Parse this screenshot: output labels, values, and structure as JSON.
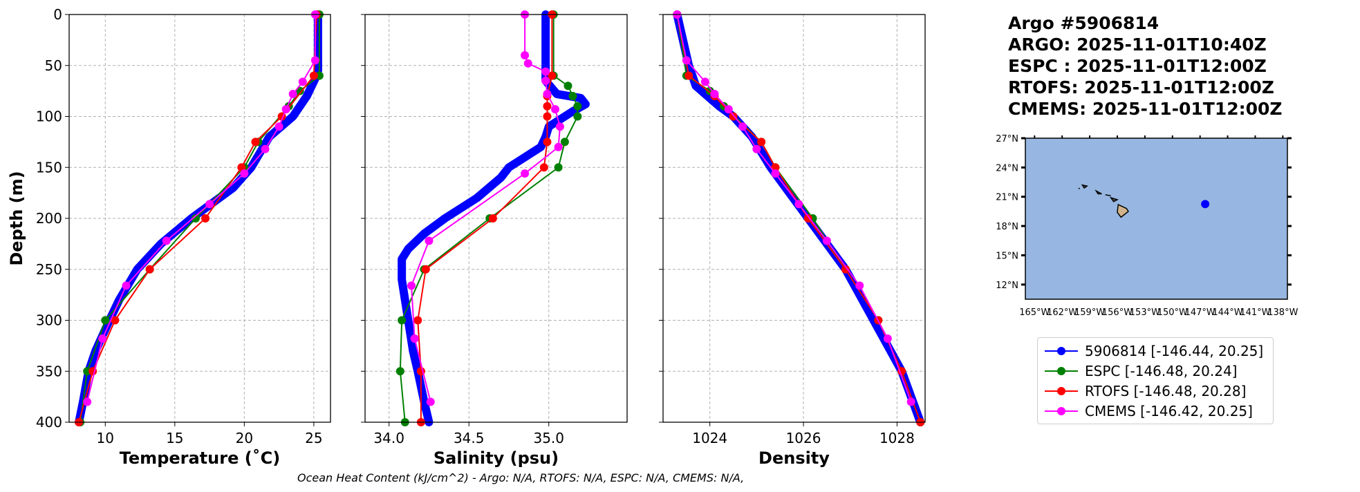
{
  "info": {
    "lines": [
      "Argo #5906814",
      "ARGO: 2025-11-01T10:40Z",
      "ESPC : 2025-11-01T12:00Z",
      "RTOFS: 2025-11-01T12:00Z",
      "CMEMS: 2025-11-01T12:00Z"
    ]
  },
  "footer": "Ocean Heat Content (kJ/cm^2) - Argo: N/A,  RTOFS: N/A,  ESPC: N/A,  CMEMS: N/A,",
  "legend": [
    {
      "label": "5906814 [-146.44, 20.25]",
      "color": "#0000ff"
    },
    {
      "label": "ESPC [-146.48, 20.24]",
      "color": "#008000"
    },
    {
      "label": "RTOFS [-146.48, 20.28]",
      "color": "#ff0000"
    },
    {
      "label": "CMEMS [-146.42, 20.25]",
      "color": "#ff00ff"
    }
  ],
  "chart_data": [
    {
      "type": "line",
      "xlabel": "Temperature (˚C)",
      "ylabel": "Depth (m)",
      "xlim": [
        7.4,
        26.2
      ],
      "ylim": [
        400,
        0
      ],
      "xticks": [
        10,
        15,
        20,
        25
      ],
      "yticks": [
        0,
        50,
        100,
        150,
        200,
        250,
        300,
        350,
        400
      ],
      "grid": true,
      "series": [
        {
          "name": "5906814",
          "depth": [
            0,
            55,
            60,
            80,
            100,
            120,
            150,
            170,
            200,
            225,
            250,
            280,
            300,
            330,
            350,
            380,
            400
          ],
          "values": [
            25.3,
            25.3,
            25.2,
            24.5,
            23.5,
            21.8,
            20.5,
            19.2,
            16.2,
            14.0,
            12.3,
            11.0,
            10.3,
            9.3,
            8.8,
            8.4,
            8.1
          ]
        },
        {
          "name": "ESPC",
          "depth": [
            0,
            60,
            75,
            90,
            125,
            150,
            200,
            250,
            300,
            350,
            400
          ],
          "values": [
            25.4,
            25.4,
            24.0,
            23.2,
            21.0,
            20.0,
            16.5,
            13.2,
            10.0,
            8.7,
            8.2
          ]
        },
        {
          "name": "RTOFS",
          "depth": [
            0,
            60,
            100,
            125,
            150,
            200,
            250,
            300,
            350,
            400
          ],
          "values": [
            25.2,
            25.0,
            22.7,
            20.8,
            19.8,
            17.2,
            13.2,
            10.7,
            9.1,
            8.1
          ]
        },
        {
          "name": "CMEMS",
          "depth": [
            0,
            45,
            66,
            78,
            93,
            110,
            132,
            156,
            186,
            222,
            266,
            318,
            380
          ],
          "values": [
            25.1,
            25.1,
            24.2,
            23.5,
            23.0,
            22.5,
            21.5,
            20.0,
            17.5,
            14.4,
            11.5,
            9.8,
            8.7
          ]
        }
      ]
    },
    {
      "type": "line",
      "xlabel": "Salinity (psu)",
      "xlim": [
        33.85,
        35.49
      ],
      "ylim": [
        400,
        0
      ],
      "xticks": [
        34.0,
        34.5,
        35.0
      ],
      "yticks": [
        0,
        50,
        100,
        150,
        200,
        250,
        300,
        350,
        400
      ],
      "grid": true,
      "series": [
        {
          "name": "5906814",
          "depth": [
            0,
            65,
            78,
            82,
            88,
            95,
            100,
            110,
            120,
            130,
            140,
            150,
            160,
            180,
            200,
            215,
            230,
            240,
            260,
            280,
            300,
            330,
            350,
            380,
            400
          ],
          "values": [
            34.98,
            34.98,
            35.05,
            35.2,
            35.23,
            35.15,
            35.1,
            35.0,
            34.98,
            34.95,
            34.85,
            34.75,
            34.7,
            34.55,
            34.35,
            34.22,
            34.12,
            34.08,
            34.08,
            34.1,
            34.12,
            34.15,
            34.18,
            34.22,
            34.25
          ]
        },
        {
          "name": "ESPC",
          "depth": [
            0,
            60,
            70,
            80,
            90,
            100,
            125,
            150,
            200,
            250,
            300,
            350,
            400
          ],
          "values": [
            35.03,
            35.03,
            35.12,
            35.15,
            35.18,
            35.18,
            35.1,
            35.06,
            34.63,
            34.22,
            34.08,
            34.07,
            34.1
          ]
        },
        {
          "name": "RTOFS",
          "depth": [
            0,
            60,
            80,
            90,
            100,
            125,
            150,
            200,
            250,
            300,
            350,
            400
          ],
          "values": [
            35.02,
            35.02,
            34.99,
            34.99,
            34.99,
            34.99,
            34.97,
            34.65,
            34.23,
            34.18,
            34.2,
            34.2
          ]
        },
        {
          "name": "CMEMS",
          "depth": [
            0,
            40,
            48,
            56,
            65,
            78,
            93,
            110,
            130,
            156,
            222,
            266,
            318,
            380
          ],
          "values": [
            34.85,
            34.85,
            34.87,
            34.98,
            34.98,
            34.99,
            35.04,
            35.07,
            35.06,
            34.85,
            34.25,
            34.14,
            34.16,
            34.26
          ]
        }
      ]
    },
    {
      "type": "line",
      "xlabel": "Density",
      "xlim": [
        1023.0,
        1028.6
      ],
      "ylim": [
        400,
        0
      ],
      "xticks": [
        1024,
        1026,
        1028
      ],
      "yticks": [
        0,
        50,
        100,
        150,
        200,
        250,
        300,
        350,
        400
      ],
      "grid": true,
      "series": [
        {
          "name": "5906814",
          "depth": [
            0,
            50,
            70,
            90,
            100,
            120,
            150,
            200,
            250,
            300,
            350,
            400
          ],
          "values": [
            1023.3,
            1023.55,
            1023.7,
            1024.2,
            1024.5,
            1024.9,
            1025.3,
            1026.1,
            1026.9,
            1027.5,
            1028.1,
            1028.5
          ]
        },
        {
          "name": "ESPC",
          "depth": [
            0,
            60,
            75,
            90,
            125,
            150,
            200,
            250,
            300,
            350,
            400
          ],
          "values": [
            1023.3,
            1023.5,
            1024.0,
            1024.3,
            1025.1,
            1025.4,
            1026.2,
            1026.9,
            1027.6,
            1028.1,
            1028.5
          ]
        },
        {
          "name": "RTOFS",
          "depth": [
            0,
            60,
            80,
            100,
            125,
            150,
            200,
            250,
            300,
            350,
            400
          ],
          "values": [
            1023.3,
            1023.55,
            1024.1,
            1024.5,
            1025.1,
            1025.4,
            1026.1,
            1026.9,
            1027.6,
            1028.1,
            1028.5
          ]
        },
        {
          "name": "CMEMS",
          "depth": [
            0,
            45,
            66,
            78,
            93,
            110,
            132,
            156,
            186,
            222,
            266,
            318,
            380
          ],
          "values": [
            1023.3,
            1023.5,
            1023.9,
            1024.1,
            1024.4,
            1024.7,
            1025.0,
            1025.4,
            1025.9,
            1026.5,
            1027.2,
            1027.8,
            1028.3
          ]
        }
      ]
    },
    {
      "type": "scatter",
      "title": "map",
      "xlim": [
        -166,
        -137.5
      ],
      "ylim": [
        10.5,
        27
      ],
      "xticks": [
        "165°W",
        "162°W",
        "159°W",
        "156°W",
        "153°W",
        "150°W",
        "147°W",
        "144°W",
        "141°W",
        "138°W"
      ],
      "xtickvals": [
        -165,
        -162,
        -159,
        -156,
        -153,
        -150,
        -147,
        -144,
        -141,
        -138
      ],
      "yticks": [
        "12°N",
        "15°N",
        "18°N",
        "21°N",
        "24°N",
        "27°N"
      ],
      "ytickvals": [
        12,
        15,
        18,
        21,
        24,
        27
      ],
      "points": [
        {
          "lon": -146.44,
          "lat": 20.25
        }
      ],
      "ocean_color": "#97b6e1",
      "land_color": "#d2b48c"
    }
  ]
}
